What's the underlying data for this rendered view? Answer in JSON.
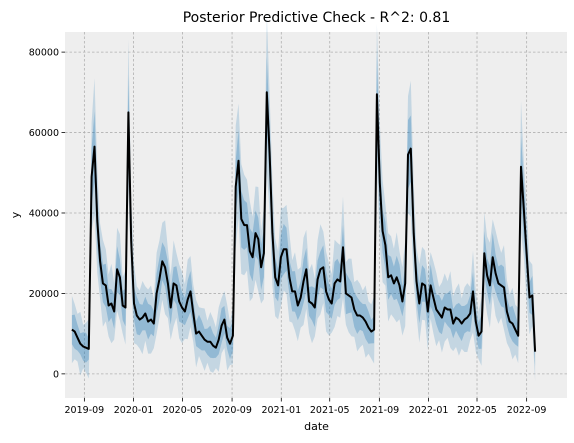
{
  "chart_data": {
    "type": "line",
    "title": "Posterior Predictive Check - R^2: 0.81",
    "xlabel": "date",
    "ylabel": "y",
    "xlim": [
      "2019-07-15",
      "2022-12-10"
    ],
    "ylim": [
      -6000,
      85000
    ],
    "x_ticks": [
      {
        "date": "2019-09-01",
        "label": "2019-09"
      },
      {
        "date": "2020-01-01",
        "label": "2020-01"
      },
      {
        "date": "2020-05-01",
        "label": "2020-05"
      },
      {
        "date": "2020-09-01",
        "label": "2020-09"
      },
      {
        "date": "2021-01-01",
        "label": "2021-01"
      },
      {
        "date": "2021-05-01",
        "label": "2021-05"
      },
      {
        "date": "2021-09-01",
        "label": "2021-09"
      },
      {
        "date": "2022-01-01",
        "label": "2022-01"
      },
      {
        "date": "2022-05-01",
        "label": "2022-05"
      },
      {
        "date": "2022-09-01",
        "label": "2022-09"
      }
    ],
    "y_ticks": [
      0,
      20000,
      40000,
      60000,
      80000
    ],
    "y_tick_labels": [
      "0",
      "20000",
      "40000",
      "60000",
      "80000"
    ],
    "grid": true,
    "colors": {
      "observed": "#000000",
      "band": "#1f77b4",
      "background": "#eeeeee",
      "grid": "#b0b0b0"
    },
    "series": [
      {
        "role": "observed",
        "points": [
          [
            "2019-08-01",
            11000
          ],
          [
            "2019-08-08",
            10500
          ],
          [
            "2019-08-15",
            9000
          ],
          [
            "2019-08-22",
            7500
          ],
          [
            "2019-08-29",
            6800
          ],
          [
            "2019-09-05",
            6500
          ],
          [
            "2019-09-12",
            6200
          ],
          [
            "2019-09-19",
            49000
          ],
          [
            "2019-09-26",
            56500
          ],
          [
            "2019-10-03",
            38000
          ],
          [
            "2019-10-10",
            28000
          ],
          [
            "2019-10-17",
            22500
          ],
          [
            "2019-10-24",
            22000
          ],
          [
            "2019-10-31",
            17000
          ],
          [
            "2019-11-07",
            17500
          ],
          [
            "2019-11-14",
            15500
          ],
          [
            "2019-11-21",
            26000
          ],
          [
            "2019-11-28",
            24000
          ],
          [
            "2019-12-05",
            17000
          ],
          [
            "2019-12-12",
            16500
          ],
          [
            "2019-12-19",
            65000
          ],
          [
            "2019-12-26",
            33000
          ],
          [
            "2020-01-02",
            17500
          ],
          [
            "2020-01-09",
            14500
          ],
          [
            "2020-01-16",
            13500
          ],
          [
            "2020-01-23",
            14000
          ],
          [
            "2020-01-30",
            15000
          ],
          [
            "2020-02-06",
            13000
          ],
          [
            "2020-02-13",
            13500
          ],
          [
            "2020-02-20",
            12500
          ],
          [
            "2020-02-27",
            20000
          ],
          [
            "2020-03-05",
            23500
          ],
          [
            "2020-03-12",
            28000
          ],
          [
            "2020-03-19",
            26500
          ],
          [
            "2020-03-26",
            22500
          ],
          [
            "2020-04-02",
            16500
          ],
          [
            "2020-04-09",
            22500
          ],
          [
            "2020-04-16",
            22000
          ],
          [
            "2020-04-23",
            18000
          ],
          [
            "2020-04-30",
            16500
          ],
          [
            "2020-05-07",
            15500
          ],
          [
            "2020-05-14",
            18500
          ],
          [
            "2020-05-21",
            20500
          ],
          [
            "2020-05-28",
            15000
          ],
          [
            "2020-06-04",
            10000
          ],
          [
            "2020-06-11",
            10500
          ],
          [
            "2020-06-18",
            9500
          ],
          [
            "2020-06-25",
            8500
          ],
          [
            "2020-07-02",
            8000
          ],
          [
            "2020-07-09",
            8000
          ],
          [
            "2020-07-16",
            7000
          ],
          [
            "2020-07-23",
            6500
          ],
          [
            "2020-07-30",
            8500
          ],
          [
            "2020-08-06",
            12000
          ],
          [
            "2020-08-13",
            13500
          ],
          [
            "2020-08-20",
            9000
          ],
          [
            "2020-08-27",
            7500
          ],
          [
            "2020-09-03",
            9500
          ],
          [
            "2020-09-10",
            46500
          ],
          [
            "2020-09-17",
            53000
          ],
          [
            "2020-09-24",
            38500
          ],
          [
            "2020-10-01",
            37000
          ],
          [
            "2020-10-08",
            37000
          ],
          [
            "2020-10-15",
            30500
          ],
          [
            "2020-10-22",
            29000
          ],
          [
            "2020-10-29",
            35000
          ],
          [
            "2020-11-05",
            33500
          ],
          [
            "2020-11-12",
            26500
          ],
          [
            "2020-11-19",
            30000
          ],
          [
            "2020-11-26",
            70000
          ],
          [
            "2020-12-03",
            55000
          ],
          [
            "2020-12-10",
            35000
          ],
          [
            "2020-12-17",
            24000
          ],
          [
            "2020-12-24",
            22000
          ],
          [
            "2020-12-31",
            29000
          ],
          [
            "2021-01-07",
            31000
          ],
          [
            "2021-01-14",
            31000
          ],
          [
            "2021-01-21",
            24000
          ],
          [
            "2021-01-28",
            20500
          ],
          [
            "2021-02-04",
            20500
          ],
          [
            "2021-02-11",
            17000
          ],
          [
            "2021-02-18",
            19000
          ],
          [
            "2021-02-25",
            23000
          ],
          [
            "2021-03-04",
            26000
          ],
          [
            "2021-03-11",
            18000
          ],
          [
            "2021-03-18",
            17500
          ],
          [
            "2021-03-25",
            16500
          ],
          [
            "2021-04-01",
            23500
          ],
          [
            "2021-04-08",
            26000
          ],
          [
            "2021-04-15",
            26500
          ],
          [
            "2021-04-22",
            20500
          ],
          [
            "2021-04-29",
            18500
          ],
          [
            "2021-05-06",
            17500
          ],
          [
            "2021-05-13",
            22500
          ],
          [
            "2021-05-20",
            23500
          ],
          [
            "2021-05-27",
            23000
          ],
          [
            "2021-06-03",
            31500
          ],
          [
            "2021-06-10",
            20000
          ],
          [
            "2021-06-17",
            19500
          ],
          [
            "2021-06-24",
            19000
          ],
          [
            "2021-07-01",
            16000
          ],
          [
            "2021-07-08",
            14500
          ],
          [
            "2021-07-15",
            14500
          ],
          [
            "2021-07-22",
            14000
          ],
          [
            "2021-07-29",
            13000
          ],
          [
            "2021-08-05",
            11500
          ],
          [
            "2021-08-12",
            10500
          ],
          [
            "2021-08-19",
            11000
          ],
          [
            "2021-08-26",
            69500
          ],
          [
            "2021-09-02",
            47500
          ],
          [
            "2021-09-09",
            35500
          ],
          [
            "2021-09-16",
            32000
          ],
          [
            "2021-09-23",
            24000
          ],
          [
            "2021-09-30",
            24500
          ],
          [
            "2021-10-07",
            22500
          ],
          [
            "2021-10-14",
            24000
          ],
          [
            "2021-10-21",
            22000
          ],
          [
            "2021-10-28",
            18000
          ],
          [
            "2021-11-04",
            22500
          ],
          [
            "2021-11-11",
            54500
          ],
          [
            "2021-11-18",
            56000
          ],
          [
            "2021-11-25",
            35000
          ],
          [
            "2021-12-02",
            23000
          ],
          [
            "2021-12-09",
            17500
          ],
          [
            "2021-12-16",
            22500
          ],
          [
            "2021-12-23",
            22000
          ],
          [
            "2021-12-30",
            15500
          ],
          [
            "2022-01-06",
            22000
          ],
          [
            "2022-01-13",
            19000
          ],
          [
            "2022-01-20",
            16000
          ],
          [
            "2022-01-27",
            15000
          ],
          [
            "2022-02-03",
            14000
          ],
          [
            "2022-02-10",
            16500
          ],
          [
            "2022-02-17",
            16000
          ],
          [
            "2022-02-24",
            16000
          ],
          [
            "2022-03-03",
            12500
          ],
          [
            "2022-03-10",
            14000
          ],
          [
            "2022-03-17",
            13500
          ],
          [
            "2022-03-24",
            12500
          ],
          [
            "2022-03-31",
            13500
          ],
          [
            "2022-04-07",
            14000
          ],
          [
            "2022-04-14",
            15000
          ],
          [
            "2022-04-21",
            20500
          ],
          [
            "2022-04-28",
            13000
          ],
          [
            "2022-05-05",
            9500
          ],
          [
            "2022-05-12",
            10500
          ],
          [
            "2022-05-19",
            30000
          ],
          [
            "2022-05-26",
            24500
          ],
          [
            "2022-06-02",
            22000
          ],
          [
            "2022-06-09",
            29000
          ],
          [
            "2022-06-16",
            25000
          ],
          [
            "2022-06-23",
            22500
          ],
          [
            "2022-06-30",
            22000
          ],
          [
            "2022-07-07",
            21500
          ],
          [
            "2022-07-14",
            15500
          ],
          [
            "2022-07-21",
            13000
          ],
          [
            "2022-07-28",
            12500
          ],
          [
            "2022-08-04",
            11000
          ],
          [
            "2022-08-11",
            9500
          ],
          [
            "2022-08-18",
            51500
          ],
          [
            "2022-08-25",
            41000
          ],
          [
            "2022-09-01",
            30000
          ],
          [
            "2022-09-08",
            19000
          ],
          [
            "2022-09-15",
            19500
          ],
          [
            "2022-09-22",
            5500
          ]
        ]
      }
    ]
  }
}
